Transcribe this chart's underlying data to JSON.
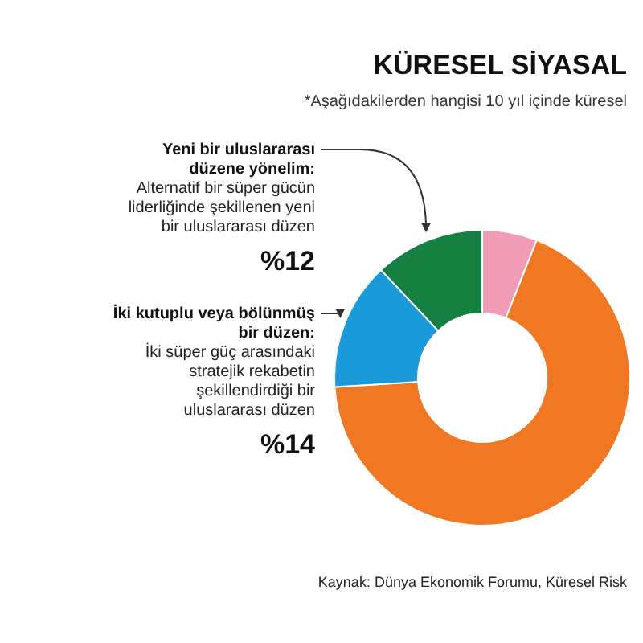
{
  "chart_data": {
    "type": "donut",
    "title": "KÜRESEL SİYASAL",
    "subtitle": "*Aşağıdakilerden hangisi 10 yıl içinde küresel",
    "categories": [
      null,
      null,
      "İki kutuplu veya bölünmüş bir düzen: İki süper güç arasındaki stratejik rekabetin şekillendirdiği bir uluslararası düzen",
      "Yeni bir uluslararası düzene yönelim: Alternatif bir süper gücün liderliğinde şekillenen yeni bir uluslararası düzen"
    ],
    "values": [
      6,
      68,
      14,
      12
    ],
    "colors": [
      "#f19cb7",
      "#f07822",
      "#1a9ad9",
      "#168043"
    ],
    "value_labels": [
      null,
      null,
      "%14",
      "%12"
    ],
    "annotations": [
      "Kaynak: Dünya Ekonomik Forumu, Küresel Risk"
    ]
  }
}
